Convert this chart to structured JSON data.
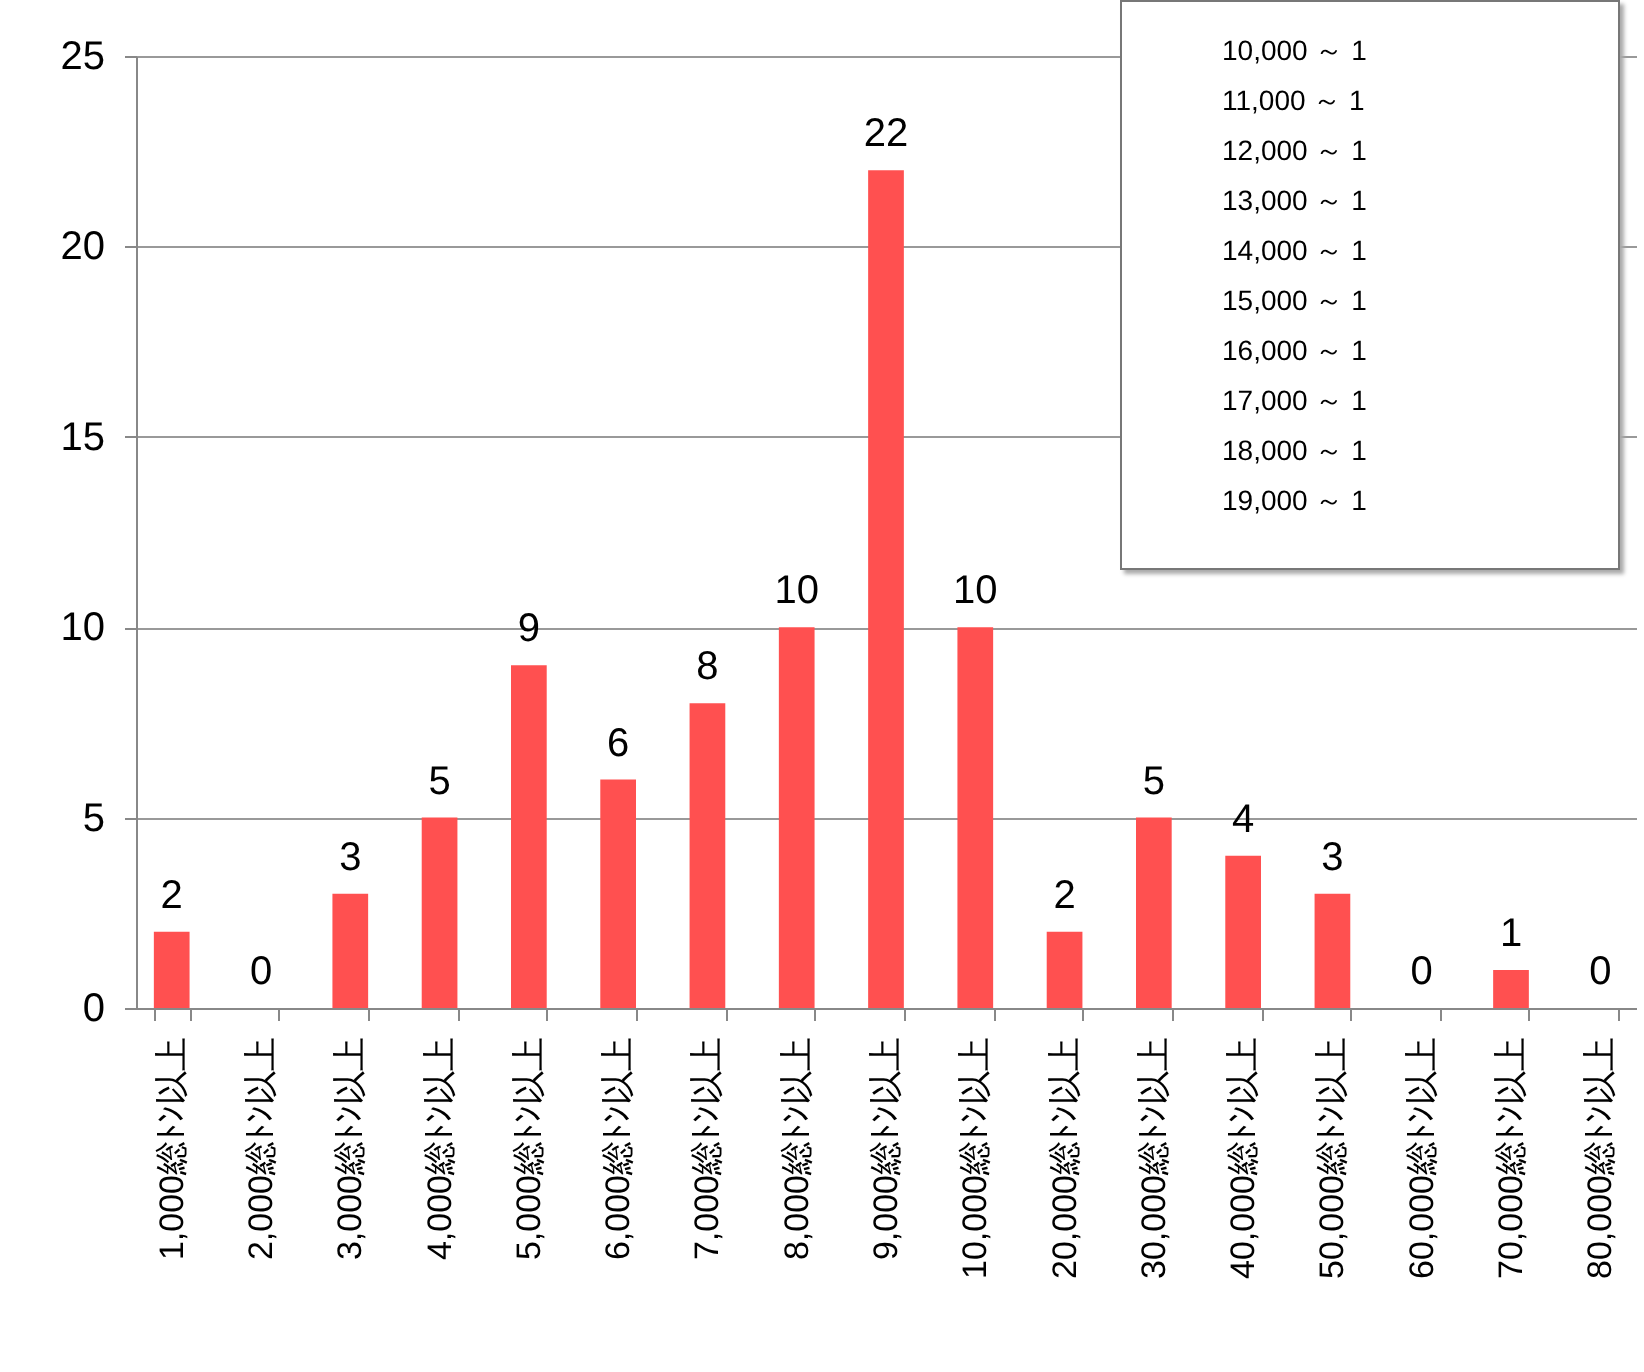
{
  "chart_data": {
    "type": "bar",
    "categories": [
      "1,000総ﾄﾝ以上",
      "2,000総ﾄﾝ以上",
      "3,000総ﾄﾝ以上",
      "4,000総ﾄﾝ以上",
      "5,000総ﾄﾝ以上",
      "6,000総ﾄﾝ以上",
      "7,000総ﾄﾝ以上",
      "8,000総ﾄﾝ以上",
      "9,000総ﾄﾝ以上",
      "10,000総ﾄﾝ以上",
      "20,000総ﾄﾝ以上",
      "30,000総ﾄﾝ以上",
      "40,000総ﾄﾝ以上",
      "50,000総ﾄﾝ以上",
      "60,000総ﾄﾝ以上",
      "70,000総ﾄﾝ以上",
      "80,000総ﾄﾝ以上"
    ],
    "values": [
      2,
      0,
      3,
      5,
      9,
      6,
      8,
      10,
      22,
      10,
      2,
      5,
      4,
      3,
      0,
      1,
      0
    ],
    "color": "#ff5050",
    "ylim": [
      0,
      25
    ],
    "yticks": [
      0,
      5,
      10,
      15,
      20,
      25
    ],
    "grid": "y",
    "data_labels": true,
    "annotations": [
      "10,000 ～ 1",
      "11,000 ～ 1",
      "12,000 ～ 1",
      "13,000 ～ 1",
      "14,000 ～ 1",
      "15,000 ～ 1",
      "16,000 ～ 1",
      "17,000 ～ 1",
      "18,000 ～ 1",
      "19,000 ～ 1"
    ]
  }
}
